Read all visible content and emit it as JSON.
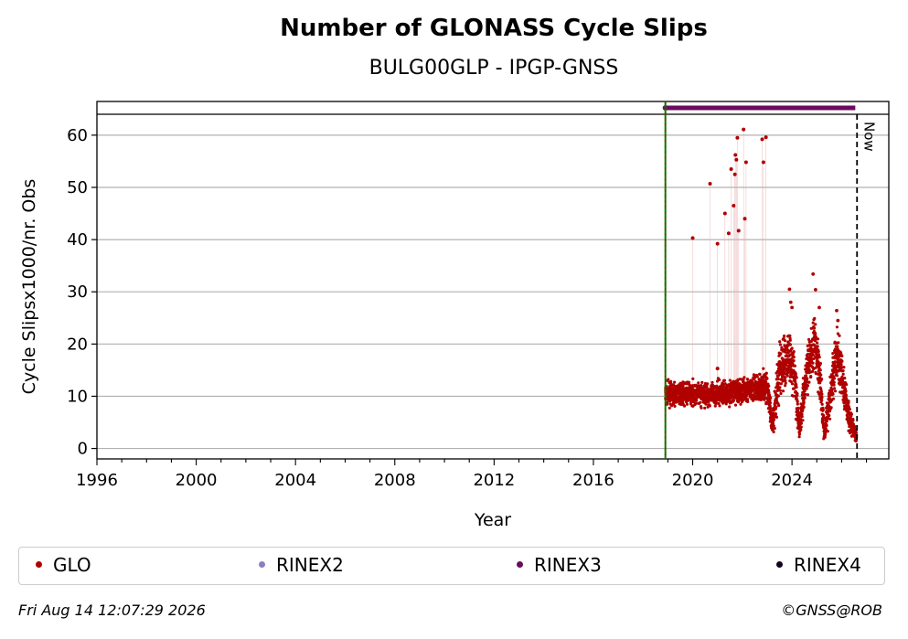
{
  "chart_data": {
    "type": "scatter",
    "title": "Number of GLONASS Cycle Slips",
    "subtitle": "BULG00GLP - IPGP-GNSS",
    "xlabel": "Year",
    "ylabel": "Cycle Slipsx1000/nr. Obs",
    "xlim": [
      1996,
      2027.9
    ],
    "ylim": [
      -2,
      64
    ],
    "x_ticks": [
      1996,
      2000,
      2004,
      2008,
      2012,
      2016,
      2020,
      2024
    ],
    "y_ticks": [
      0,
      10,
      20,
      30,
      40,
      50,
      60
    ],
    "grid": "horizontal",
    "start_line_x": 2018.9,
    "now_line_x": 2026.62,
    "now_label": "Now",
    "series": [
      {
        "name": "GLO",
        "color": "#b00000",
        "outliers": [
          [
            2020.0,
            40.3
          ],
          [
            2020.7,
            50.7
          ],
          [
            2021.0,
            39.2
          ],
          [
            2021.3,
            45.0
          ],
          [
            2021.45,
            41.2
          ],
          [
            2021.55,
            53.5
          ],
          [
            2021.65,
            46.5
          ],
          [
            2021.7,
            52.5
          ],
          [
            2021.72,
            56.2
          ],
          [
            2021.76,
            55.3
          ],
          [
            2021.8,
            59.5
          ],
          [
            2021.85,
            41.7
          ],
          [
            2022.05,
            61.1
          ],
          [
            2022.1,
            44.0
          ],
          [
            2022.15,
            54.8
          ],
          [
            2022.8,
            59.2
          ],
          [
            2022.85,
            54.8
          ],
          [
            2022.95,
            59.6
          ],
          [
            2021.0,
            15.3
          ]
        ],
        "dense_profile": [
          [
            2018.9,
            10.5,
            2.0
          ],
          [
            2019.5,
            10.5,
            2.0
          ],
          [
            2020.0,
            10.5,
            2.2
          ],
          [
            2020.5,
            10.2,
            2.2
          ],
          [
            2021.0,
            10.5,
            2.2
          ],
          [
            2021.5,
            10.8,
            2.2
          ],
          [
            2022.0,
            11.0,
            2.5
          ],
          [
            2022.5,
            11.5,
            2.5
          ],
          [
            2023.0,
            12.0,
            3.0
          ],
          [
            2023.2,
            4.0,
            2.5
          ],
          [
            2023.5,
            15.0,
            6.0
          ],
          [
            2023.9,
            18.0,
            5.0
          ],
          [
            2024.1,
            14.0,
            5.0
          ],
          [
            2024.3,
            4.0,
            2.5
          ],
          [
            2024.6,
            15.0,
            5.0
          ],
          [
            2024.9,
            20.0,
            5.0
          ],
          [
            2025.1,
            15.0,
            5.0
          ],
          [
            2025.3,
            3.0,
            2.0
          ],
          [
            2025.6,
            12.0,
            5.0
          ],
          [
            2025.8,
            18.0,
            5.0
          ],
          [
            2026.0,
            14.0,
            5.0
          ],
          [
            2026.3,
            6.0,
            3.0
          ],
          [
            2026.6,
            2.0,
            1.0
          ]
        ],
        "extra_high": [
          [
            2023.9,
            30.5
          ],
          [
            2023.95,
            28.0
          ],
          [
            2024.0,
            27.0
          ],
          [
            2024.85,
            33.4
          ],
          [
            2024.95,
            30.4
          ],
          [
            2025.1,
            27.0
          ],
          [
            2025.8,
            26.4
          ],
          [
            2025.85,
            24.5
          ]
        ]
      },
      {
        "name": "RINEX2",
        "color": "#8c7fbf"
      },
      {
        "name": "RINEX3",
        "color": "#6b0a5e",
        "band": [
          2018.9,
          2026.55
        ],
        "band_y": 65.3
      },
      {
        "name": "RINEX4",
        "color": "#16001f"
      }
    ]
  },
  "footer": {
    "timestamp": "Fri Aug 14 12:07:29 2026",
    "credit": "©GNSS@ROB"
  }
}
